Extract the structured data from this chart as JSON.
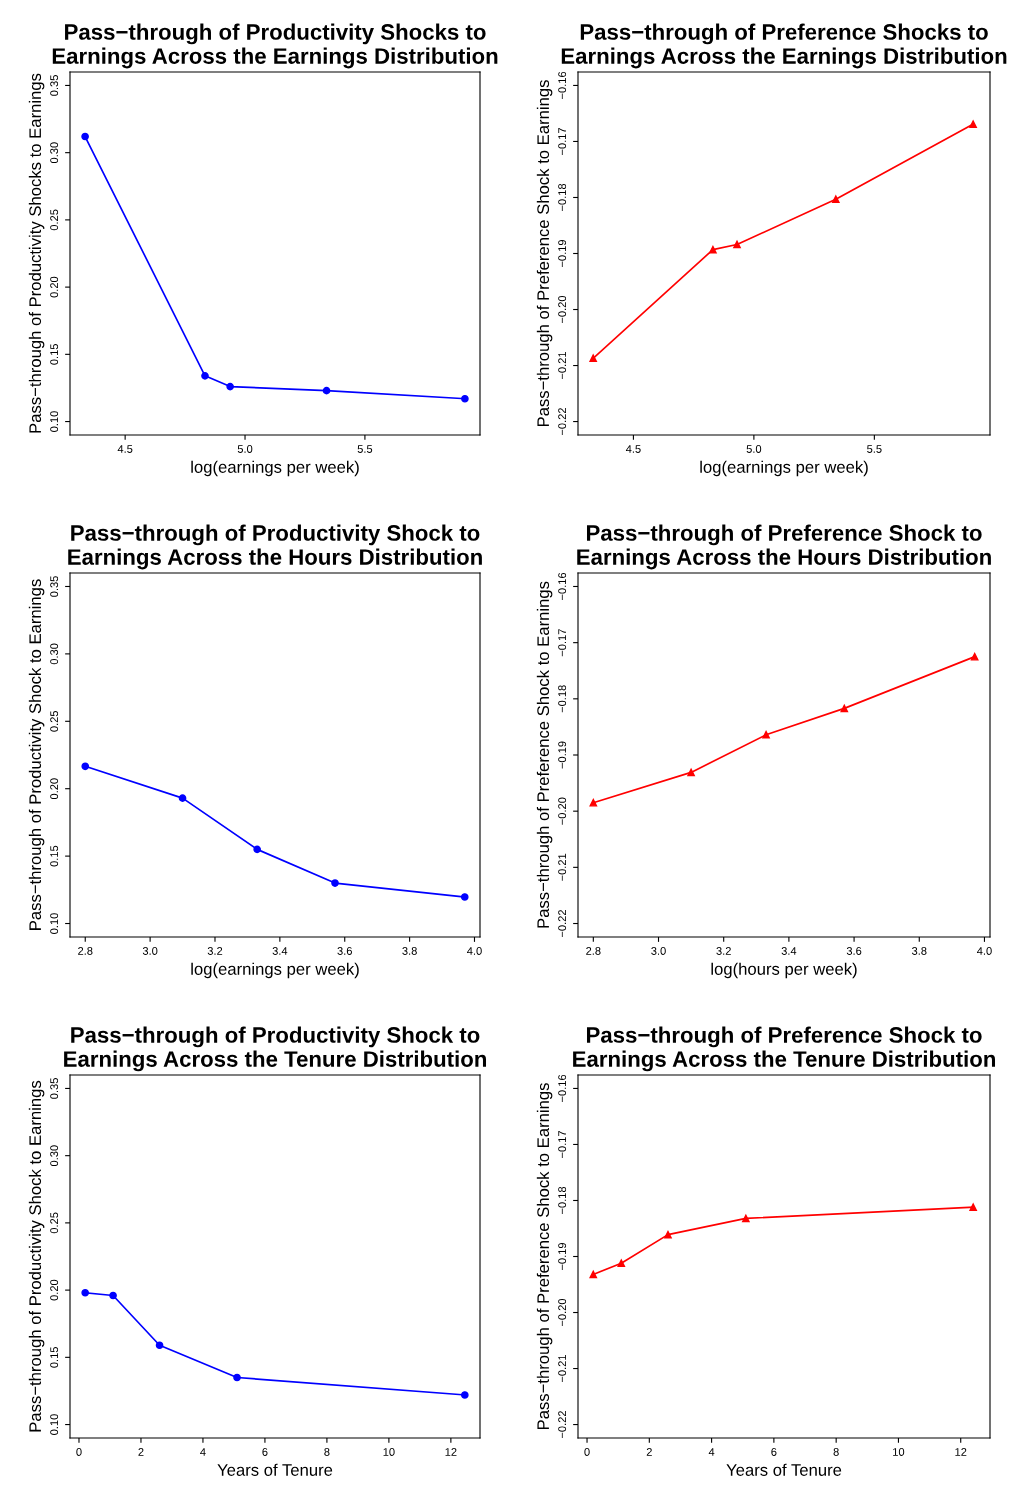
{
  "chart_data": [
    {
      "type": "line",
      "title": "Pass−through of Productivity Shocks to\nEarnings Across the Earnings Distribution",
      "xlabel": "log(earnings per week)",
      "ylabel": "Pass−through of Productivity Shocks to Earnings",
      "x": [
        4.333,
        4.833,
        4.938,
        5.34,
        5.917
      ],
      "series": [
        {
          "color": "#0000ff",
          "values": [
            0.312,
            0.134,
            0.126,
            0.123,
            0.117
          ]
        }
      ],
      "marker": "circle",
      "xlim": [
        4.27,
        5.98
      ],
      "ylim": [
        0.09,
        0.36
      ],
      "xticks": [
        4.5,
        {
          "value": 5,
          "label": "5.0"
        },
        5.5
      ],
      "yticks": [
        {
          "value": 0.1,
          "label": "0.10"
        },
        {
          "value": 0.15,
          "label": "0.15"
        },
        {
          "value": 0.2,
          "label": "0.20"
        },
        {
          "value": 0.25,
          "label": "0.25"
        },
        {
          "value": 0.3,
          "label": "0.30"
        },
        {
          "value": 0.35,
          "label": "0.35"
        }
      ]
    },
    {
      "type": "line",
      "title": "Pass−through of Preference Shocks to\nEarnings Across the Earnings Distribution",
      "xlabel": "log(earnings per week)",
      "ylabel": "Pass−through of Preference Shock to Earnings",
      "x": [
        4.333,
        4.83,
        4.93,
        5.34,
        5.91
      ],
      "series": [
        {
          "color": "#ff0000",
          "values": [
            -0.2087,
            -0.1893,
            -0.1884,
            -0.1803,
            -0.1669
          ]
        }
      ],
      "marker": "triangle",
      "xlim": [
        4.27,
        5.98
      ],
      "ylim": [
        -0.2224,
        -0.1576
      ],
      "xticks": [
        4.5,
        {
          "value": 5,
          "label": "5.0"
        },
        5.5
      ],
      "yticks": [
        {
          "value": -0.22,
          "label": "−0.22"
        },
        {
          "value": -0.21,
          "label": "−0.21"
        },
        {
          "value": -0.2,
          "label": "−0.20"
        },
        {
          "value": -0.19,
          "label": "−0.19"
        },
        {
          "value": -0.18,
          "label": "−0.18"
        },
        {
          "value": -0.17,
          "label": "−0.17"
        },
        {
          "value": -0.16,
          "label": "−0.16"
        }
      ]
    },
    {
      "type": "line",
      "title": "Pass−through of Productivity Shock to\nEarnings Across the Hours Distribution",
      "xlabel": "log(earnings per week)",
      "ylabel": "Pass−through of Productivity Shock to Earnings",
      "x": [
        2.8,
        3.1,
        3.33,
        3.57,
        3.97
      ],
      "series": [
        {
          "color": "#0000ff",
          "values": [
            0.2166,
            0.193,
            0.155,
            0.13,
            0.1197
          ]
        }
      ],
      "marker": "circle",
      "xlim": [
        2.753,
        4.017
      ],
      "ylim": [
        0.09,
        0.36
      ],
      "xticks": [
        2.8,
        {
          "value": 3,
          "label": "3.0"
        },
        3.2,
        3.4,
        3.6,
        3.8,
        {
          "value": 4,
          "label": "4.0"
        }
      ],
      "yticks": [
        {
          "value": 0.1,
          "label": "0.10"
        },
        {
          "value": 0.15,
          "label": "0.15"
        },
        {
          "value": 0.2,
          "label": "0.20"
        },
        {
          "value": 0.25,
          "label": "0.25"
        },
        {
          "value": 0.3,
          "label": "0.30"
        },
        {
          "value": 0.35,
          "label": "0.35"
        }
      ]
    },
    {
      "type": "line",
      "title": "Pass−through of Preference Shock to\nEarnings Across the Hours Distribution",
      "xlabel": "log(hours per week)",
      "ylabel": "Pass−through of Preference Shock to Earnings",
      "x": [
        2.8,
        3.1,
        3.33,
        3.57,
        3.97
      ],
      "series": [
        {
          "color": "#ff0000",
          "values": [
            -0.1985,
            -0.1931,
            -0.1864,
            -0.1817,
            -0.1725
          ]
        }
      ],
      "marker": "triangle",
      "xlim": [
        2.753,
        4.017
      ],
      "ylim": [
        -0.2224,
        -0.1576
      ],
      "xticks": [
        2.8,
        {
          "value": 3,
          "label": "3.0"
        },
        3.2,
        3.4,
        3.6,
        3.8,
        {
          "value": 4,
          "label": "4.0"
        }
      ],
      "yticks": [
        {
          "value": -0.22,
          "label": "−0.22"
        },
        {
          "value": -0.21,
          "label": "−0.21"
        },
        {
          "value": -0.2,
          "label": "−0.20"
        },
        {
          "value": -0.19,
          "label": "−0.19"
        },
        {
          "value": -0.18,
          "label": "−0.18"
        },
        {
          "value": -0.17,
          "label": "−0.17"
        },
        {
          "value": -0.16,
          "label": "−0.16"
        }
      ]
    },
    {
      "type": "line",
      "title": "Pass−through of Productivity Shock to\nEarnings Across the Tenure Distribution",
      "xlabel": "Years of Tenure",
      "ylabel": "Pass−through of Productivity Shock to Earnings",
      "x": [
        0.2,
        1.1,
        2.6,
        5.1,
        12.45
      ],
      "series": [
        {
          "color": "#0000ff",
          "values": [
            0.198,
            0.196,
            0.159,
            0.135,
            0.122
          ]
        }
      ],
      "marker": "circle",
      "xlim": [
        -0.29,
        12.94
      ],
      "ylim": [
        0.09,
        0.36
      ],
      "xticks": [
        0,
        2,
        4,
        6,
        8,
        10,
        12
      ],
      "yticks": [
        {
          "value": 0.1,
          "label": "0.10"
        },
        {
          "value": 0.15,
          "label": "0.15"
        },
        {
          "value": 0.2,
          "label": "0.20"
        },
        {
          "value": 0.25,
          "label": "0.25"
        },
        {
          "value": 0.3,
          "label": "0.30"
        },
        {
          "value": 0.35,
          "label": "0.35"
        }
      ]
    },
    {
      "type": "line",
      "title": "Pass−through of Preference Shock to\nEarnings Across the Tenure Distribution",
      "xlabel": "Years of Tenure",
      "ylabel": "Pass−through of Preference Shock to Earnings",
      "x": [
        0.2,
        1.1,
        2.6,
        5.1,
        12.4
      ],
      "series": [
        {
          "color": "#ff0000",
          "values": [
            -0.1932,
            -0.1912,
            -0.1861,
            -0.1832,
            -0.1812
          ]
        }
      ],
      "marker": "triangle",
      "xlim": [
        -0.29,
        12.94
      ],
      "ylim": [
        -0.2224,
        -0.1576
      ],
      "xticks": [
        0,
        2,
        4,
        6,
        8,
        10,
        12
      ],
      "yticks": [
        {
          "value": -0.22,
          "label": "−0.22"
        },
        {
          "value": -0.21,
          "label": "−0.21"
        },
        {
          "value": -0.2,
          "label": "−0.20"
        },
        {
          "value": -0.19,
          "label": "−0.19"
        },
        {
          "value": -0.18,
          "label": "−0.18"
        },
        {
          "value": -0.17,
          "label": "−0.17"
        },
        {
          "value": -0.16,
          "label": "−0.16"
        }
      ]
    }
  ]
}
